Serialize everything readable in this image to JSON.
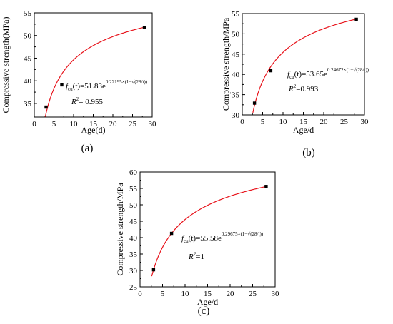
{
  "chart_data": [
    {
      "type": "scatter",
      "panel_label": "(a)",
      "xlabel": "Age(d)",
      "ylabel": "Compressive strength(MPa)",
      "xlim": [
        0,
        30
      ],
      "ylim": [
        32,
        55
      ],
      "xticks": [
        "0",
        "5",
        "10",
        "15",
        "20",
        "25",
        "30"
      ],
      "yticks": [
        "35",
        "40",
        "45",
        "50",
        "55"
      ],
      "points": {
        "x": [
          3,
          7,
          28
        ],
        "y": [
          34.2,
          39.1,
          51.8
        ]
      },
      "fit": {
        "a": 51.83,
        "b": 0.22195
      },
      "equation": {
        "lhs": "f",
        "sub": "cu",
        "arg": "(t)",
        "rhs": "=51.83e",
        "exponent": "0.22195×(1−√(28/t))"
      },
      "r2": {
        "label": "R",
        "exp": "2",
        "value": "= 0.955"
      },
      "marker_color": "#000000",
      "fit_color": "#e8141c"
    },
    {
      "type": "scatter",
      "panel_label": "(b)",
      "xlabel": "Age/d",
      "ylabel": "Compressive strength/MPa",
      "xlim": [
        0,
        30
      ],
      "ylim": [
        30,
        55
      ],
      "xticks": [
        "0",
        "5",
        "10",
        "15",
        "20",
        "25",
        "30"
      ],
      "yticks": [
        "30",
        "35",
        "40",
        "45",
        "50",
        "55"
      ],
      "points": {
        "x": [
          3,
          7,
          28
        ],
        "y": [
          32.9,
          40.9,
          53.6
        ]
      },
      "fit": {
        "a": 53.65,
        "b": 0.24672
      },
      "equation": {
        "lhs": "f",
        "sub": "cu",
        "arg": "(t)",
        "rhs": "=53.65e",
        "exponent": "0.24672×(1−√(28/t))"
      },
      "r2": {
        "label": "R",
        "exp": "2",
        "value": "=0.993"
      },
      "marker_color": "#000000",
      "fit_color": "#e8141c"
    },
    {
      "type": "scatter",
      "panel_label": "(c)",
      "xlabel": "Age/d",
      "ylabel": "Compressive strength/MPa",
      "xlim": [
        0,
        30
      ],
      "ylim": [
        25,
        60
      ],
      "xticks": [
        "0",
        "5",
        "10",
        "15",
        "20",
        "25",
        "30"
      ],
      "yticks": [
        "25",
        "30",
        "35",
        "40",
        "45",
        "50",
        "55",
        "60"
      ],
      "points": {
        "x": [
          3,
          7,
          28
        ],
        "y": [
          30.2,
          41.3,
          55.6
        ]
      },
      "fit": {
        "a": 55.58,
        "b": 0.29675
      },
      "equation": {
        "lhs": "f",
        "sub": "cu",
        "arg": "(t)",
        "rhs": "=55.58e",
        "exponent": "0.29675×(1−√(28/t))"
      },
      "r2": {
        "label": "R",
        "exp": "2",
        "value": "=1"
      },
      "marker_color": "#000000",
      "fit_color": "#e8141c"
    }
  ]
}
